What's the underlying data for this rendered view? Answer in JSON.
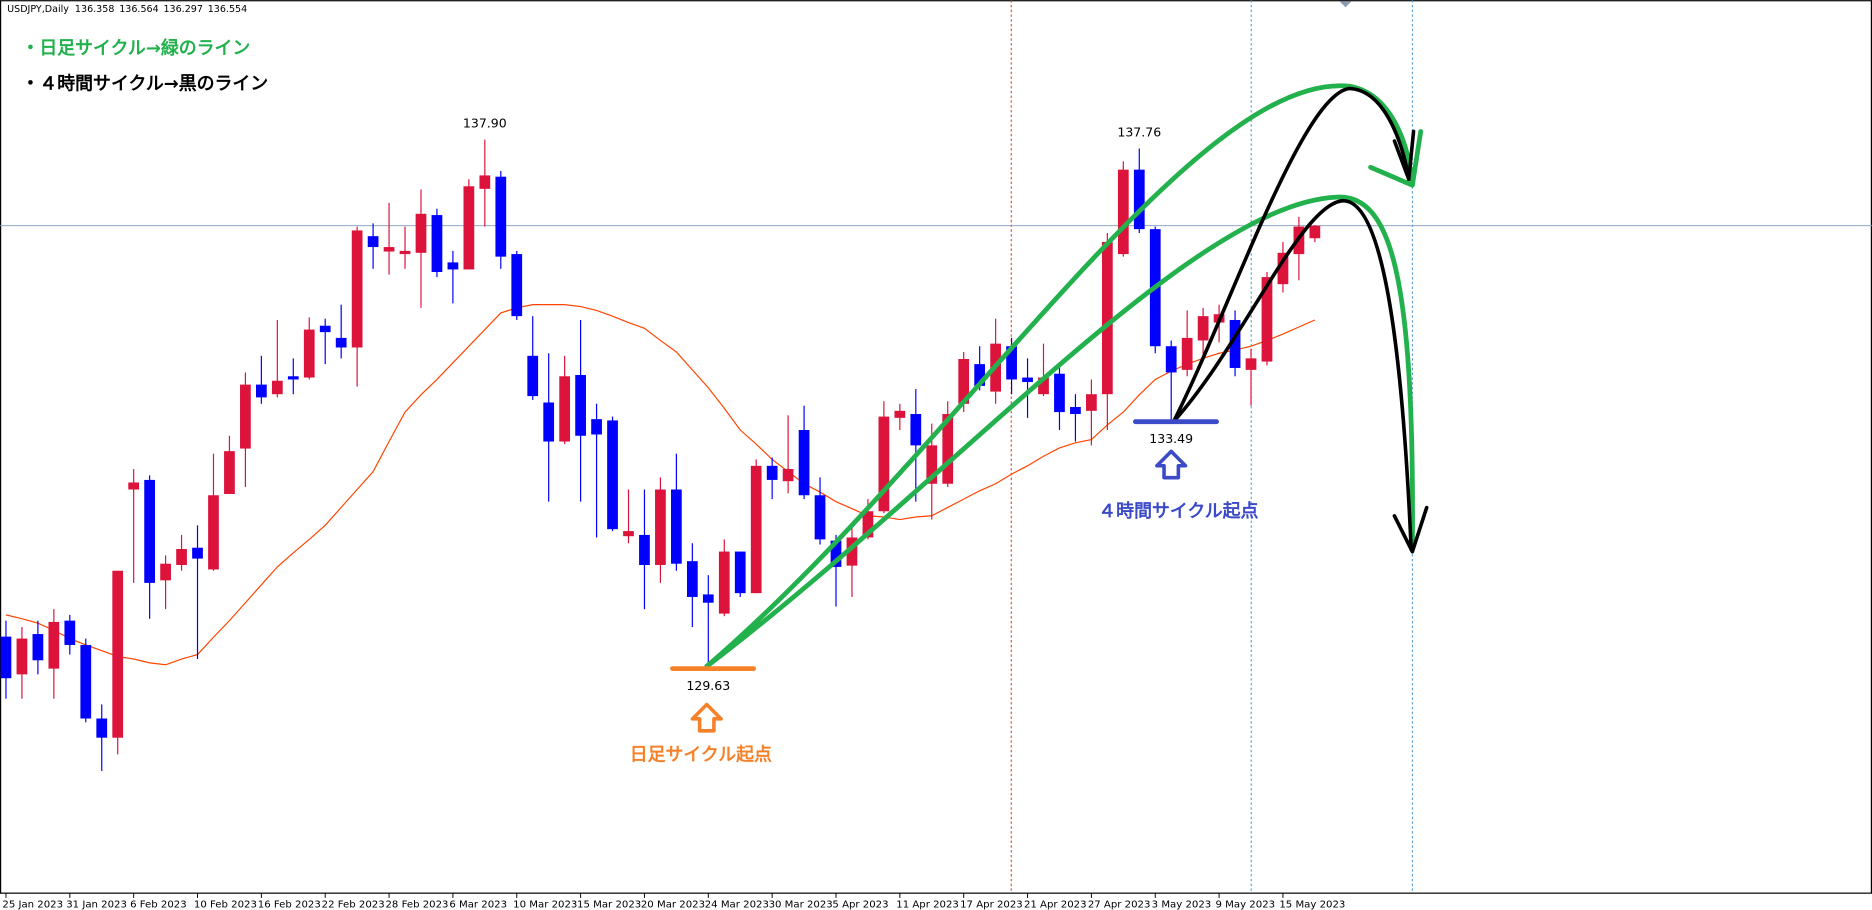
{
  "chart_data": {
    "type": "candlestick",
    "symbol": "USDJPY,Daily",
    "categories": [
      "25 Jan 2023",
      null,
      null,
      null,
      "31 Jan 2023",
      null,
      null,
      null,
      "6 Feb 2023",
      null,
      null,
      null,
      "10 Feb 2023",
      null,
      null,
      null,
      "16 Feb 2023",
      null,
      null,
      null,
      "22 Feb 2023",
      null,
      null,
      null,
      "28 Feb 2023",
      null,
      null,
      null,
      "6 Mar 2023",
      null,
      null,
      null,
      "10 Mar 2023",
      null,
      null,
      null,
      "15 Mar 2023",
      null,
      null,
      null,
      "20 Mar 2023",
      null,
      null,
      null,
      "24 Mar 2023",
      null,
      null,
      null,
      "30 Mar 2023",
      null,
      null,
      null,
      "5 Apr 2023",
      null,
      null,
      null,
      "11 Apr 2023",
      null,
      null,
      null,
      "17 Apr 2023",
      null,
      null,
      null,
      "21 Apr 2023",
      null,
      null,
      null,
      "27 Apr 2023",
      null,
      null,
      null,
      "3 May 2023",
      null,
      null,
      null,
      "9 May 2023",
      null,
      null,
      null,
      "15 May 2023",
      null,
      null
    ],
    "open": [
      130.13,
      129.54,
      130.17,
      129.63,
      130.38,
      130.0,
      128.85,
      128.55,
      132.43,
      132.58,
      131.01,
      131.25,
      131.52,
      131.18,
      132.36,
      133.07,
      134.07,
      133.92,
      134.2,
      134.18,
      134.99,
      134.8,
      134.65,
      136.39,
      136.15,
      136.11,
      136.13,
      136.72,
      135.98,
      135.87,
      137.13,
      137.32,
      136.11,
      134.52,
      133.79,
      133.18,
      134.22,
      133.53,
      133.51,
      131.7,
      131.72,
      131.25,
      132.43,
      131.31,
      130.79,
      130.49,
      131.46,
      130.81,
      132.8,
      132.56,
      133.36,
      132.34,
      131.63,
      131.24,
      131.68,
      132.09,
      133.55,
      133.61,
      132.52,
      132.52,
      133.77,
      134.39,
      133.96,
      134.67,
      134.18,
      133.92,
      134.24,
      133.72,
      133.66,
      133.92,
      136.11,
      137.43,
      136.5,
      134.67,
      134.3,
      134.76,
      135.04,
      135.08,
      134.3,
      134.43,
      135.64,
      136.11,
      136.358
    ],
    "high": [
      130.38,
      130.28,
      130.38,
      130.56,
      130.47,
      130.1,
      129.07,
      131.16,
      132.75,
      132.65,
      131.4,
      131.72,
      131.87,
      132.99,
      133.27,
      134.26,
      134.52,
      135.08,
      134.48,
      135.12,
      135.1,
      135.32,
      136.54,
      136.59,
      136.91,
      136.54,
      137.12,
      136.82,
      136.16,
      137.28,
      137.9,
      137.41,
      136.16,
      135.14,
      134.56,
      134.52,
      135.08,
      133.77,
      133.57,
      132.43,
      132.43,
      132.62,
      132.99,
      131.59,
      131.09,
      131.65,
      131.46,
      132.9,
      132.93,
      133.59,
      133.74,
      132.62,
      131.72,
      131.87,
      132.28,
      133.81,
      133.77,
      134.0,
      133.46,
      133.81,
      134.58,
      134.67,
      135.1,
      134.8,
      134.48,
      134.71,
      134.41,
      133.92,
      134.15,
      136.44,
      137.56,
      137.76,
      136.54,
      134.76,
      135.23,
      135.27,
      135.32,
      135.23,
      134.63,
      135.83,
      136.3,
      136.69,
      136.564
    ],
    "low": [
      129.16,
      129.16,
      129.54,
      129.16,
      129.85,
      128.79,
      128.03,
      128.29,
      130.97,
      130.41,
      130.56,
      131.16,
      129.78,
      131.16,
      132.36,
      132.47,
      133.77,
      133.87,
      133.92,
      134.15,
      134.39,
      134.48,
      134.04,
      135.88,
      135.79,
      135.88,
      135.27,
      135.75,
      135.34,
      135.87,
      136.54,
      135.88,
      135.08,
      133.83,
      132.24,
      133.14,
      132.24,
      131.68,
      131.78,
      131.59,
      130.56,
      130.97,
      131.16,
      130.28,
      129.63,
      130.45,
      130.75,
      130.81,
      132.28,
      132.37,
      132.28,
      131.57,
      130.6,
      130.75,
      131.65,
      132.06,
      133.36,
      132.24,
      131.96,
      132.47,
      133.64,
      133.98,
      133.77,
      133.92,
      133.55,
      133.89,
      133.36,
      133.18,
      133.12,
      133.36,
      136.07,
      136.44,
      134.56,
      133.49,
      134.2,
      134.54,
      134.73,
      134.2,
      133.74,
      134.37,
      135.51,
      135.7,
      136.297
    ],
    "close": [
      129.48,
      130.1,
      129.76,
      130.36,
      130.0,
      128.85,
      128.55,
      131.16,
      132.54,
      130.97,
      131.27,
      131.5,
      131.35,
      132.34,
      133.03,
      134.07,
      133.87,
      134.13,
      134.15,
      134.93,
      134.89,
      134.65,
      136.48,
      136.22,
      136.22,
      136.16,
      136.74,
      135.83,
      135.87,
      137.17,
      137.34,
      136.07,
      135.14,
      133.89,
      133.18,
      134.2,
      133.27,
      133.29,
      131.81,
      131.78,
      131.25,
      132.43,
      131.27,
      130.75,
      130.66,
      131.46,
      130.81,
      132.8,
      132.58,
      132.75,
      132.34,
      131.65,
      131.22,
      131.68,
      132.09,
      133.57,
      133.66,
      133.12,
      133.12,
      133.61,
      134.47,
      134.05,
      134.71,
      134.15,
      134.11,
      134.18,
      133.64,
      133.61,
      133.92,
      136.3,
      137.43,
      136.5,
      134.67,
      134.26,
      134.8,
      135.14,
      135.17,
      134.33,
      134.48,
      135.75,
      136.13,
      136.54,
      136.554
    ],
    "up_color": "#dc143c",
    "down_color": "#0000ff",
    "moving_average": {
      "color": "#ff4500",
      "values": [
        130.47,
        130.41,
        130.34,
        130.23,
        130.1,
        130.0,
        129.91,
        129.82,
        129.78,
        129.72,
        129.69,
        129.78,
        129.85,
        130.12,
        130.38,
        130.66,
        130.94,
        131.22,
        131.44,
        131.65,
        131.87,
        132.15,
        132.43,
        132.71,
        133.18,
        133.64,
        133.91,
        134.15,
        134.41,
        134.67,
        134.93,
        135.19,
        135.27,
        135.32,
        135.32,
        135.32,
        135.29,
        135.23,
        135.14,
        135.04,
        134.95,
        134.76,
        134.58,
        134.3,
        134.02,
        133.7,
        133.36,
        133.14,
        132.9,
        132.71,
        132.52,
        132.39,
        132.24,
        132.13,
        132.02,
        132.0,
        131.96,
        132.0,
        132.02,
        132.15,
        132.28,
        132.41,
        132.52,
        132.67,
        132.8,
        132.95,
        133.08,
        133.16,
        133.21,
        133.44,
        133.64,
        133.91,
        134.15,
        134.28,
        134.39,
        134.48,
        134.56,
        134.61,
        134.67,
        134.76,
        134.86,
        134.97,
        135.08
      ]
    },
    "ylim": [
      126.12,
      140.08
    ],
    "price_labels": [
      {
        "value": 137.9,
        "label": "137.90"
      },
      {
        "value": 129.63,
        "label": "129.63"
      },
      {
        "value": 137.76,
        "label": "137.76"
      },
      {
        "value": 133.49,
        "label": "133.49"
      }
    ],
    "annotations": [
      "・日足サイクル→緑のライン",
      "・４時間サイクル→黒のライン",
      "日足サイクル起点",
      "４時間サイクル起点"
    ]
  }
}
